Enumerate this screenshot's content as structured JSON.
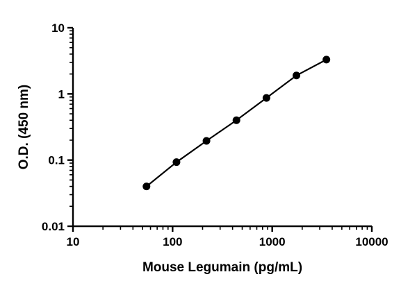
{
  "chart_data": {
    "type": "scatter",
    "title": "",
    "xlabel": "Mouse Legumain (pg/mL)",
    "ylabel": "O.D. (450 nm)",
    "x_scale": "log",
    "y_scale": "log",
    "xlim": [
      10,
      10000
    ],
    "ylim": [
      0.01,
      10
    ],
    "x_ticks": [
      "10",
      "100",
      "1000",
      "10000"
    ],
    "y_ticks": [
      "0.01",
      "0.1",
      "1",
      "10"
    ],
    "grid": false,
    "legend": "none",
    "fit_line": true,
    "marker_color": "#000000",
    "series": [
      {
        "x": [
          54.7,
          109.4,
          218.8,
          437.5,
          875,
          1750,
          3500
        ],
        "y": [
          0.04,
          0.093,
          0.195,
          0.4,
          0.87,
          1.9,
          3.3
        ]
      }
    ]
  }
}
